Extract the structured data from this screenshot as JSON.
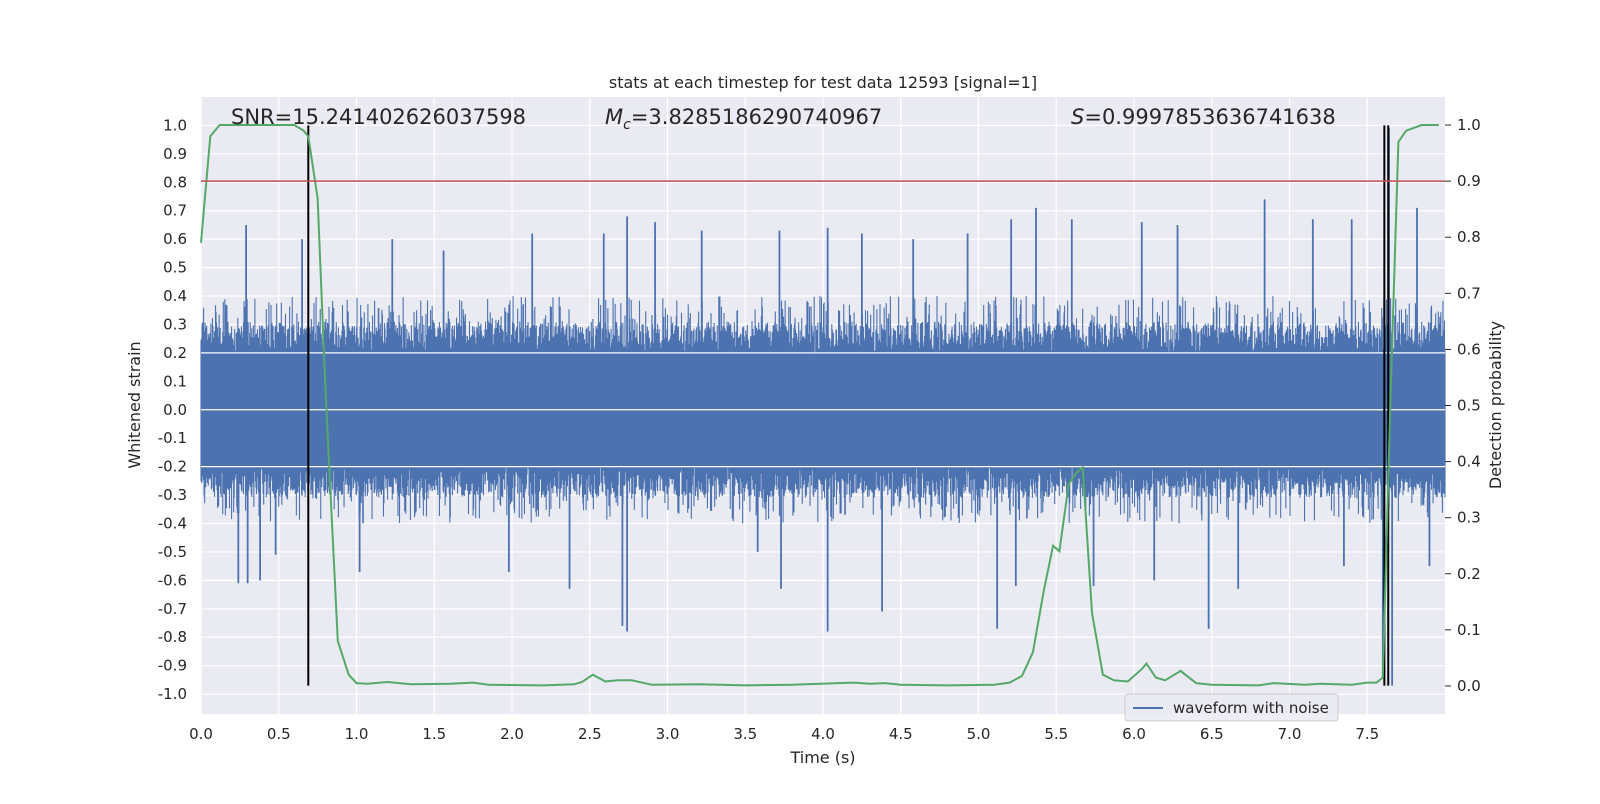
{
  "chart_data": {
    "type": "line",
    "title": "stats at each timestep for test data 12593 [signal=1]",
    "xlabel": "Time (s)",
    "ylabel_left": "Whitened strain",
    "ylabel_right": "Detection probability",
    "xlim": [
      0.0,
      8.0
    ],
    "ylim_left": [
      -1.07,
      1.1
    ],
    "ylim_right": [
      -0.05,
      1.05
    ],
    "x_ticks": [
      "0.0",
      "0.5",
      "1.0",
      "1.5",
      "2.0",
      "2.5",
      "3.0",
      "3.5",
      "4.0",
      "4.5",
      "5.0",
      "5.5",
      "6.0",
      "6.5",
      "7.0",
      "7.5"
    ],
    "y_ticks_left": [
      "1.0",
      "0.9",
      "0.8",
      "0.7",
      "0.6",
      "0.5",
      "0.4",
      "0.3",
      "0.2",
      "0.1",
      "0.0",
      "-0.1",
      "-0.2",
      "-0.3",
      "-0.4",
      "-0.5",
      "-0.6",
      "-0.7",
      "-0.8",
      "-0.9",
      "-1.0"
    ],
    "y_ticks_right": [
      "1.0",
      "0.9",
      "0.8",
      "0.7",
      "0.6",
      "0.5",
      "0.4",
      "0.3",
      "0.2",
      "0.1",
      "0.0"
    ],
    "grid": true,
    "legend_position": "lower-right",
    "annotations": {
      "snr": "SNR=15.241402626037598",
      "mc_symbol": "M",
      "mc_sub": "c",
      "mc_value": "=3.8285186290740967",
      "s_symbol": "S",
      "s_value": "=0.9997853636741638"
    },
    "threshold_line": {
      "axis": "right",
      "y": 0.9,
      "color": "#c44e52"
    },
    "vertical_markers": [
      {
        "x": 0.69,
        "y_range": [
          -0.97,
          1.0
        ],
        "color": "#000000"
      },
      {
        "x": 7.61,
        "y_range": [
          -0.97,
          1.0
        ],
        "color": "#000000"
      },
      {
        "x": 7.635,
        "y_range": [
          -0.97,
          1.0
        ],
        "color": "#000000"
      }
    ],
    "series": [
      {
        "name": "waveform with noise",
        "axis": "left",
        "color": "#4c72b0",
        "x_range": [
          0.0,
          8.0
        ],
        "core_amplitude": 0.2,
        "typical_peak_amplitude": 0.4,
        "notable_peaks": [
          {
            "x": 0.24,
            "y": -0.61
          },
          {
            "x": 0.29,
            "y": 0.65
          },
          {
            "x": 0.3,
            "y": -0.61
          },
          {
            "x": 0.38,
            "y": -0.6
          },
          {
            "x": 0.48,
            "y": -0.51
          },
          {
            "x": 0.65,
            "y": 0.6
          },
          {
            "x": 1.02,
            "y": -0.57
          },
          {
            "x": 1.23,
            "y": 0.6
          },
          {
            "x": 1.56,
            "y": 0.56
          },
          {
            "x": 1.98,
            "y": -0.57
          },
          {
            "x": 2.13,
            "y": 0.62
          },
          {
            "x": 2.37,
            "y": -0.63
          },
          {
            "x": 2.59,
            "y": 0.62
          },
          {
            "x": 2.71,
            "y": -0.76
          },
          {
            "x": 2.74,
            "y": -0.78
          },
          {
            "x": 2.74,
            "y": 0.68
          },
          {
            "x": 2.92,
            "y": 0.66
          },
          {
            "x": 3.22,
            "y": 0.63
          },
          {
            "x": 3.58,
            "y": -0.5
          },
          {
            "x": 3.72,
            "y": 0.63
          },
          {
            "x": 3.73,
            "y": -0.63
          },
          {
            "x": 4.03,
            "y": -0.78
          },
          {
            "x": 4.03,
            "y": 0.64
          },
          {
            "x": 4.25,
            "y": 0.62
          },
          {
            "x": 4.38,
            "y": -0.71
          },
          {
            "x": 4.58,
            "y": 0.6
          },
          {
            "x": 4.93,
            "y": 0.62
          },
          {
            "x": 5.12,
            "y": -0.77
          },
          {
            "x": 5.21,
            "y": 0.67
          },
          {
            "x": 5.24,
            "y": -0.62
          },
          {
            "x": 5.37,
            "y": 0.71
          },
          {
            "x": 5.6,
            "y": 0.67
          },
          {
            "x": 5.74,
            "y": -0.62
          },
          {
            "x": 6.05,
            "y": 0.66
          },
          {
            "x": 6.13,
            "y": -0.6
          },
          {
            "x": 6.28,
            "y": 0.65
          },
          {
            "x": 6.48,
            "y": -0.77
          },
          {
            "x": 6.67,
            "y": -0.63
          },
          {
            "x": 6.84,
            "y": 0.74
          },
          {
            "x": 7.15,
            "y": 0.67
          },
          {
            "x": 7.35,
            "y": -0.55
          },
          {
            "x": 7.4,
            "y": 0.67
          },
          {
            "x": 7.6,
            "y": -0.93
          },
          {
            "x": 7.64,
            "y": 0.99
          },
          {
            "x": 7.66,
            "y": -0.97
          },
          {
            "x": 7.82,
            "y": 0.71
          },
          {
            "x": 7.9,
            "y": -0.55
          }
        ]
      },
      {
        "name": "detection probability",
        "axis": "right",
        "color": "#55a868",
        "x": [
          0.0,
          0.06,
          0.12,
          0.2,
          0.3,
          0.45,
          0.6,
          0.66,
          0.69,
          0.75,
          0.8,
          0.88,
          0.95,
          1.0,
          1.07,
          1.2,
          1.35,
          1.6,
          1.75,
          1.85,
          2.2,
          2.4,
          2.45,
          2.52,
          2.6,
          2.68,
          2.77,
          2.9,
          3.2,
          3.5,
          3.8,
          4.1,
          4.2,
          4.3,
          4.4,
          4.5,
          4.8,
          5.1,
          5.2,
          5.28,
          5.35,
          5.42,
          5.48,
          5.52,
          5.58,
          5.63,
          5.67,
          5.73,
          5.8,
          5.87,
          5.96,
          6.05,
          6.08,
          6.14,
          6.2,
          6.3,
          6.33,
          6.4,
          6.5,
          6.8,
          6.9,
          7.1,
          7.2,
          7.4,
          7.5,
          7.56,
          7.6,
          7.65,
          7.7,
          7.75,
          7.85,
          7.96
        ],
        "y": [
          0.79,
          0.98,
          1.0,
          1.0,
          1.0,
          1.0,
          1.0,
          0.99,
          0.98,
          0.87,
          0.53,
          0.08,
          0.02,
          0.005,
          0.004,
          0.007,
          0.003,
          0.004,
          0.006,
          0.002,
          0.001,
          0.003,
          0.007,
          0.02,
          0.008,
          0.01,
          0.01,
          0.002,
          0.003,
          0.001,
          0.002,
          0.005,
          0.006,
          0.004,
          0.005,
          0.002,
          0.001,
          0.002,
          0.006,
          0.018,
          0.06,
          0.17,
          0.25,
          0.24,
          0.36,
          0.38,
          0.39,
          0.13,
          0.02,
          0.01,
          0.008,
          0.03,
          0.04,
          0.015,
          0.01,
          0.027,
          0.02,
          0.005,
          0.002,
          0.001,
          0.005,
          0.002,
          0.004,
          0.002,
          0.006,
          0.006,
          0.015,
          0.52,
          0.97,
          0.99,
          1.0,
          1.0
        ]
      }
    ],
    "legend_entries": [
      "waveform with noise"
    ]
  }
}
